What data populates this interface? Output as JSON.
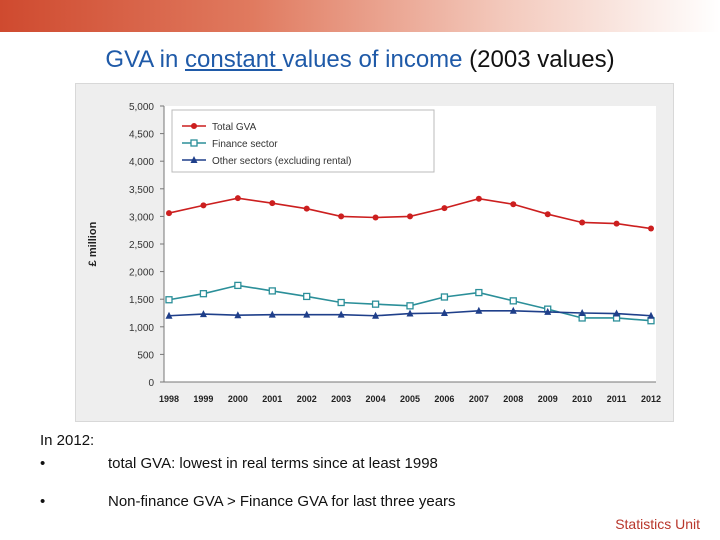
{
  "slide": {
    "title_parts": [
      "GVA in ",
      "constant ",
      "values of income",
      " (2003 values)"
    ],
    "footer": "Statistics Unit"
  },
  "summary": {
    "intro": "In 2012:",
    "bullets": [
      {
        "marker": "•",
        "text": "total GVA: lowest in real terms since at least 1998"
      },
      {
        "marker": "•",
        "text": "Non-finance GVA > Finance GVA for last three years"
      }
    ]
  },
  "colors": {
    "title": "#1f5aa8",
    "footer": "#b8362b",
    "total": "#cc1f1f",
    "finance": "#2b8f99",
    "other": "#1f3f8a"
  },
  "chart_data": {
    "type": "line",
    "title": "",
    "xlabel": "",
    "ylabel": "£ million",
    "categories": [
      "1998",
      "1999",
      "2000",
      "2001",
      "2002",
      "2003",
      "2004",
      "2005",
      "2006",
      "2007",
      "2008",
      "2009",
      "2010",
      "2011",
      "2012"
    ],
    "ylim": [
      0,
      5000
    ],
    "yticks": [
      0,
      500,
      1000,
      1500,
      2000,
      2500,
      3000,
      3500,
      4000,
      4500,
      5000
    ],
    "ytick_labels": [
      "0",
      "500",
      "1,000",
      "1,500",
      "2,000",
      "2,500",
      "3,000",
      "3,500",
      "4,000",
      "4,500",
      "5,000"
    ],
    "legend_position": "top-left",
    "series": [
      {
        "name": "Total GVA",
        "marker": "circle",
        "color": "#cc1f1f",
        "values": [
          3060,
          3200,
          3330,
          3240,
          3140,
          3000,
          2980,
          3000,
          3150,
          3320,
          3220,
          3040,
          2890,
          2870,
          2780
        ]
      },
      {
        "name": "Finance sector",
        "marker": "square-open",
        "color": "#2b8f99",
        "values": [
          1490,
          1600,
          1750,
          1650,
          1550,
          1440,
          1410,
          1380,
          1540,
          1620,
          1470,
          1320,
          1160,
          1160,
          1110
        ]
      },
      {
        "name": "Other sectors (excluding rental)",
        "marker": "triangle",
        "color": "#1f3f8a",
        "values": [
          1200,
          1230,
          1210,
          1220,
          1220,
          1220,
          1200,
          1240,
          1250,
          1290,
          1290,
          1270,
          1250,
          1240,
          1200
        ]
      }
    ]
  }
}
